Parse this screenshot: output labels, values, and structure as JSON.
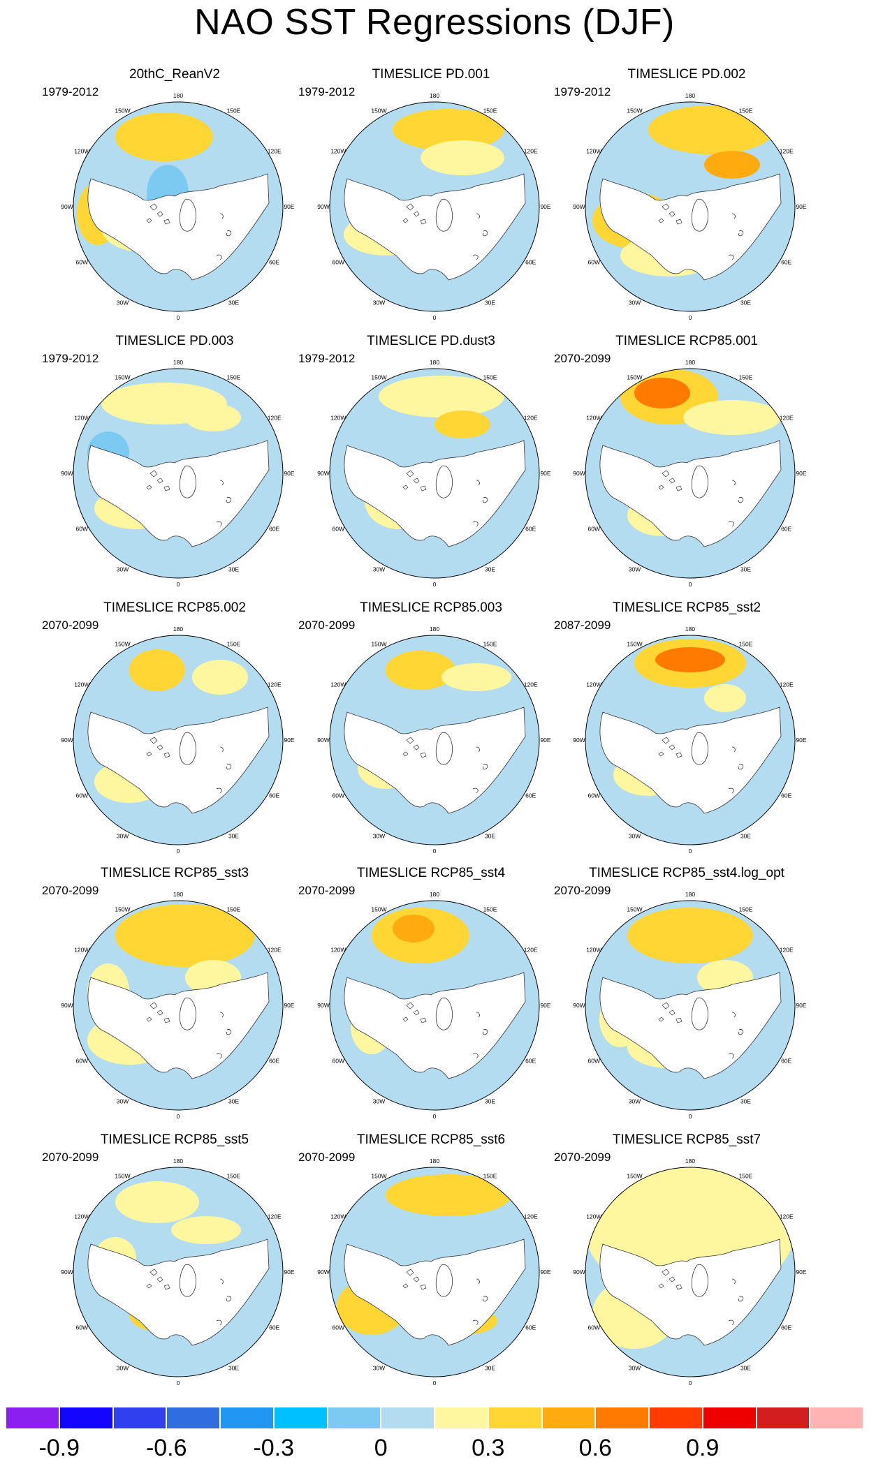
{
  "title": "NAO SST Regressions (DJF)",
  "lon_labels": [
    "180",
    "150E",
    "120E",
    "90E",
    "60E",
    "30E",
    "0",
    "30W",
    "60W",
    "90W",
    "120W",
    "150W"
  ],
  "panels": [
    {
      "name": "20thC_ReanV2",
      "period": "1979-2012"
    },
    {
      "name": "TIMESLICE PD.001",
      "period": "1979-2012"
    },
    {
      "name": "TIMESLICE PD.002",
      "period": "1979-2012"
    },
    {
      "name": "TIMESLICE PD.003",
      "period": "1979-2012"
    },
    {
      "name": "TIMESLICE PD.dust3",
      "period": "1979-2012"
    },
    {
      "name": "TIMESLICE RCP85.001",
      "period": "2070-2099"
    },
    {
      "name": "TIMESLICE RCP85.002",
      "period": "2070-2099"
    },
    {
      "name": "TIMESLICE RCP85.003",
      "period": "2070-2099"
    },
    {
      "name": "TIMESLICE RCP85_sst2",
      "period": "2087-2099"
    },
    {
      "name": "TIMESLICE RCP85_sst3",
      "period": "2070-2099"
    },
    {
      "name": "TIMESLICE RCP85_sst4",
      "period": "2070-2099"
    },
    {
      "name": "TIMESLICE RCP85_sst4.log_opt",
      "period": "2070-2099"
    },
    {
      "name": "TIMESLICE RCP85_sst5",
      "period": "2070-2099"
    },
    {
      "name": "TIMESLICE RCP85_sst6",
      "period": "2070-2099"
    },
    {
      "name": "TIMESLICE RCP85_sst7",
      "period": "2070-2099"
    }
  ],
  "colorbar": {
    "colors": [
      "#8a1fef",
      "#1206ff",
      "#3040ee",
      "#2f6ee0",
      "#2196f3",
      "#00c0ff",
      "#7ccaf2",
      "#b4dcf0",
      "#fff7a0",
      "#ffd633",
      "#ffaa0f",
      "#ff7a00",
      "#ff3c00",
      "#ee0000",
      "#d21e1e",
      "#ffb3b3"
    ],
    "labels": [
      "-0.9",
      "-0.6",
      "-0.3",
      "0",
      "0.3",
      "0.6",
      "0.9"
    ],
    "label_box_index": [
      1,
      3,
      5,
      7,
      9,
      11,
      13
    ]
  }
}
